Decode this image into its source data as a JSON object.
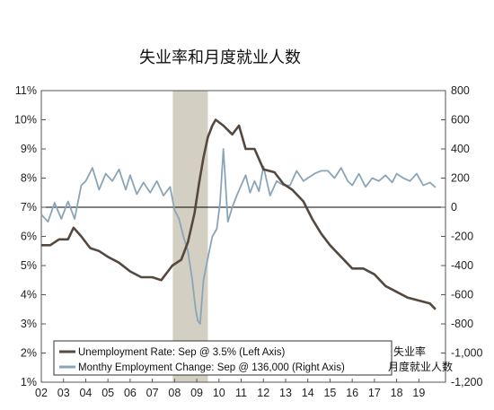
{
  "chart_data": {
    "type": "line",
    "title": "失业率和月度就业人数",
    "x_ticks": [
      "02",
      "03",
      "04",
      "05",
      "06",
      "07",
      "08",
      "09",
      "10",
      "11",
      "12",
      "13",
      "14",
      "15",
      "16",
      "17",
      "18",
      "19"
    ],
    "x_range": [
      2002.0,
      2020.2
    ],
    "ylim_left": [
      1,
      11
    ],
    "ylim_right": [
      -1200,
      800
    ],
    "left_ticks": [
      "1%",
      "2%",
      "3%",
      "4%",
      "5%",
      "6%",
      "7%",
      "8%",
      "9%",
      "10%",
      "11%"
    ],
    "right_ticks": [
      "800",
      "600",
      "400",
      "200",
      "0",
      "-200",
      "-400",
      "-600",
      "-800",
      "-1,000",
      "-1,200"
    ],
    "recession_shading": {
      "start": 2007.92,
      "end": 2009.5,
      "color": "#d4cfc3"
    },
    "legend_position": "bottom-left",
    "side_labels": [
      "失业率",
      "月度就业人数"
    ],
    "series": [
      {
        "name": "Unemployment Rate: Sep @ 3.5% (Left Axis)",
        "axis": "left",
        "color": "#55483f",
        "x": [
          2002.0,
          2002.4,
          2002.8,
          2003.2,
          2003.45,
          2003.8,
          2004.2,
          2004.6,
          2005.0,
          2005.5,
          2006.0,
          2006.5,
          2007.0,
          2007.4,
          2007.9,
          2008.3,
          2008.6,
          2008.9,
          2009.1,
          2009.3,
          2009.5,
          2009.7,
          2009.85,
          2010.2,
          2010.6,
          2010.9,
          2011.2,
          2011.6,
          2012.0,
          2012.5,
          2012.9,
          2013.3,
          2013.8,
          2014.2,
          2014.6,
          2015.0,
          2015.5,
          2016.0,
          2016.5,
          2017.0,
          2017.5,
          2018.0,
          2018.5,
          2019.0,
          2019.5,
          2019.75
        ],
        "values": [
          5.7,
          5.7,
          5.9,
          5.9,
          6.3,
          6.0,
          5.6,
          5.5,
          5.3,
          5.1,
          4.8,
          4.6,
          4.6,
          4.5,
          5.0,
          5.2,
          5.8,
          6.8,
          7.8,
          8.7,
          9.4,
          9.8,
          10.0,
          9.8,
          9.5,
          9.8,
          9.0,
          9.0,
          8.3,
          8.2,
          7.8,
          7.6,
          7.2,
          6.6,
          6.1,
          5.7,
          5.3,
          4.9,
          4.9,
          4.7,
          4.3,
          4.1,
          3.9,
          3.8,
          3.7,
          3.5
        ]
      },
      {
        "name": "Monthy Employment Change: Sep @ 136,000 (Right Axis)",
        "axis": "right",
        "color": "#8aa5b8",
        "x": [
          2002.0,
          2002.3,
          2002.6,
          2002.9,
          2003.2,
          2003.5,
          2003.8,
          2004.0,
          2004.3,
          2004.6,
          2004.9,
          2005.2,
          2005.5,
          2005.8,
          2006.0,
          2006.3,
          2006.6,
          2006.9,
          2007.2,
          2007.5,
          2007.8,
          2008.0,
          2008.2,
          2008.4,
          2008.6,
          2008.8,
          2008.95,
          2009.05,
          2009.15,
          2009.3,
          2009.5,
          2009.7,
          2009.9,
          2010.05,
          2010.2,
          2010.4,
          2010.6,
          2010.8,
          2011.0,
          2011.2,
          2011.4,
          2011.6,
          2011.8,
          2012.0,
          2012.3,
          2012.6,
          2012.9,
          2013.2,
          2013.5,
          2013.8,
          2014.0,
          2014.3,
          2014.6,
          2014.9,
          2015.2,
          2015.5,
          2015.8,
          2016.0,
          2016.3,
          2016.6,
          2016.9,
          2017.2,
          2017.5,
          2017.8,
          2018.0,
          2018.3,
          2018.6,
          2018.9,
          2019.2,
          2019.5,
          2019.75
        ],
        "values": [
          -50,
          -100,
          30,
          -80,
          40,
          -80,
          150,
          180,
          270,
          120,
          230,
          180,
          260,
          120,
          220,
          90,
          170,
          100,
          180,
          80,
          140,
          -20,
          -80,
          -200,
          -300,
          -500,
          -700,
          -780,
          -800,
          -500,
          -350,
          -200,
          -150,
          30,
          400,
          -100,
          0,
          80,
          150,
          220,
          100,
          180,
          110,
          280,
          80,
          180,
          150,
          150,
          250,
          180,
          200,
          230,
          250,
          250,
          200,
          270,
          180,
          150,
          230,
          140,
          200,
          180,
          220,
          170,
          230,
          200,
          180,
          230,
          150,
          170,
          136
        ]
      }
    ]
  }
}
